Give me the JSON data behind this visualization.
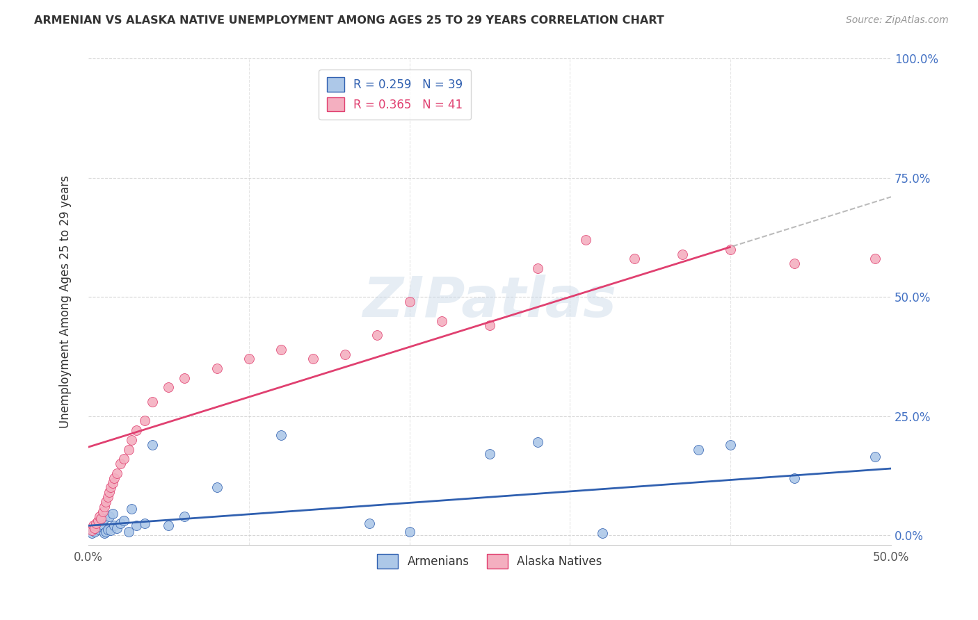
{
  "title": "ARMENIAN VS ALASKA NATIVE UNEMPLOYMENT AMONG AGES 25 TO 29 YEARS CORRELATION CHART",
  "source": "Source: ZipAtlas.com",
  "xlim": [
    0.0,
    0.5
  ],
  "ylim": [
    -0.02,
    1.0
  ],
  "armenian_R": 0.259,
  "armenian_N": 39,
  "alaska_R": 0.365,
  "alaska_N": 41,
  "armenian_color": "#adc8e8",
  "alaska_color": "#f4afc0",
  "armenian_line_color": "#3060b0",
  "alaska_line_color": "#e04070",
  "ylabel": "Unemployment Among Ages 25 to 29 years",
  "legend_armenians": "Armenians",
  "legend_alaska": "Alaska Natives",
  "arm_x": [
    0.002,
    0.003,
    0.004,
    0.005,
    0.005,
    0.006,
    0.007,
    0.007,
    0.008,
    0.009,
    0.01,
    0.01,
    0.011,
    0.012,
    0.013,
    0.014,
    0.015,
    0.016,
    0.018,
    0.02,
    0.022,
    0.025,
    0.027,
    0.03,
    0.035,
    0.04,
    0.05,
    0.06,
    0.08,
    0.12,
    0.175,
    0.2,
    0.25,
    0.28,
    0.32,
    0.38,
    0.4,
    0.44,
    0.49
  ],
  "arm_y": [
    0.005,
    0.01,
    0.008,
    0.015,
    0.02,
    0.025,
    0.012,
    0.03,
    0.018,
    0.022,
    0.005,
    0.035,
    0.008,
    0.012,
    0.04,
    0.01,
    0.045,
    0.02,
    0.015,
    0.025,
    0.03,
    0.008,
    0.055,
    0.02,
    0.025,
    0.19,
    0.02,
    0.04,
    0.1,
    0.21,
    0.025,
    0.008,
    0.17,
    0.195,
    0.005,
    0.18,
    0.19,
    0.12,
    0.165
  ],
  "ak_x": [
    0.002,
    0.003,
    0.004,
    0.005,
    0.006,
    0.007,
    0.008,
    0.009,
    0.01,
    0.011,
    0.012,
    0.013,
    0.014,
    0.015,
    0.016,
    0.018,
    0.02,
    0.022,
    0.025,
    0.027,
    0.03,
    0.035,
    0.04,
    0.05,
    0.06,
    0.08,
    0.1,
    0.12,
    0.14,
    0.16,
    0.18,
    0.2,
    0.22,
    0.25,
    0.28,
    0.31,
    0.34,
    0.37,
    0.4,
    0.44,
    0.49
  ],
  "ak_y": [
    0.01,
    0.02,
    0.015,
    0.025,
    0.03,
    0.04,
    0.035,
    0.05,
    0.06,
    0.07,
    0.08,
    0.09,
    0.1,
    0.11,
    0.12,
    0.13,
    0.15,
    0.16,
    0.18,
    0.2,
    0.22,
    0.24,
    0.28,
    0.31,
    0.33,
    0.35,
    0.37,
    0.39,
    0.37,
    0.38,
    0.42,
    0.49,
    0.45,
    0.44,
    0.56,
    0.62,
    0.58,
    0.59,
    0.6,
    0.57,
    0.58
  ]
}
